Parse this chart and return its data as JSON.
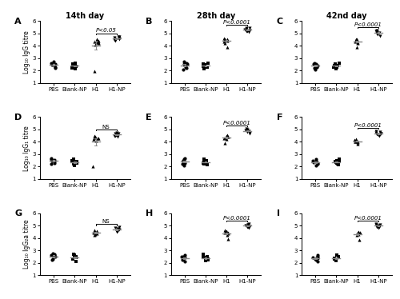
{
  "titles": [
    "14th day",
    "28th day",
    "42nd day"
  ],
  "panel_labels": [
    "A",
    "B",
    "C",
    "D",
    "E",
    "F",
    "G",
    "H",
    "I"
  ],
  "ylabels_top": [
    "IgG",
    "IgG₁",
    "IgG₂a"
  ],
  "ylabels_bottom": [
    "Log₁₀ IgG titre",
    "Log₁₀ IgG₁ titre",
    "Log₁₀ IgG₂a titre"
  ],
  "xlabels": [
    "PBS",
    "Blank-NP",
    "H1",
    "H1-NP"
  ],
  "significance": [
    [
      "P<0.05",
      "P<0.0001",
      "P<0.0001"
    ],
    [
      "NS",
      "P<0.0001",
      "P<0.0001"
    ],
    [
      "NS",
      "P<0.0001",
      "P<0.0001"
    ]
  ],
  "data": {
    "A": {
      "PBS": [
        2.5,
        2.6,
        2.4,
        2.2,
        2.7,
        2.55,
        2.45,
        2.3
      ],
      "Blank-NP": [
        2.4,
        2.3,
        2.5,
        2.2,
        2.35,
        2.6,
        2.45,
        2.15
      ],
      "H1": [
        4.2,
        4.3,
        4.4,
        4.35,
        4.1,
        4.5,
        4.25,
        1.95
      ],
      "H1-NP": [
        4.5,
        4.6,
        4.7,
        4.55,
        4.4,
        4.65,
        4.75,
        4.45
      ]
    },
    "B": {
      "PBS": [
        2.5,
        2.6,
        2.3,
        2.2,
        2.7,
        2.55,
        2.45,
        2.1
      ],
      "Blank-NP": [
        2.4,
        2.3,
        2.5,
        2.25,
        2.35,
        2.6,
        2.45,
        2.15
      ],
      "H1": [
        4.5,
        4.6,
        4.4,
        4.35,
        4.2,
        4.55,
        4.45,
        3.9
      ],
      "H1-NP": [
        5.3,
        5.4,
        5.2,
        5.35,
        5.1,
        5.45,
        5.25,
        5.15
      ]
    },
    "C": {
      "PBS": [
        2.4,
        2.5,
        2.3,
        2.2,
        2.6,
        2.5,
        2.45,
        2.1
      ],
      "Blank-NP": [
        2.4,
        2.3,
        2.5,
        2.25,
        2.35,
        2.6,
        2.4,
        2.15
      ],
      "H1": [
        4.4,
        4.5,
        4.3,
        4.35,
        4.2,
        4.45,
        4.55,
        3.9
      ],
      "H1-NP": [
        5.1,
        5.2,
        5.0,
        5.15,
        4.9,
        5.25,
        5.05,
        4.8
      ]
    },
    "D": {
      "PBS": [
        2.5,
        2.6,
        2.4,
        2.2,
        2.7,
        2.55,
        2.45,
        2.3
      ],
      "Blank-NP": [
        2.5,
        2.3,
        2.45,
        2.2,
        2.35,
        2.6,
        2.4,
        2.1
      ],
      "H1": [
        4.2,
        4.3,
        4.4,
        4.35,
        4.1,
        4.5,
        4.25,
        2.0
      ],
      "H1-NP": [
        4.5,
        4.6,
        4.7,
        4.55,
        4.4,
        4.65,
        4.75,
        4.5
      ]
    },
    "E": {
      "PBS": [
        2.5,
        2.6,
        2.3,
        2.2,
        2.7,
        2.5,
        2.45,
        2.1
      ],
      "Blank-NP": [
        2.4,
        2.3,
        2.5,
        2.25,
        2.35,
        2.6,
        2.45,
        2.15
      ],
      "H1": [
        4.3,
        4.4,
        4.5,
        4.35,
        4.2,
        4.55,
        4.4,
        3.9
      ],
      "H1-NP": [
        4.9,
        5.0,
        4.8,
        4.95,
        4.7,
        5.05,
        4.85,
        4.75
      ]
    },
    "F": {
      "PBS": [
        2.4,
        2.5,
        2.3,
        2.2,
        2.6,
        2.5,
        2.35,
        2.1
      ],
      "Blank-NP": [
        2.4,
        2.3,
        2.5,
        2.25,
        2.35,
        2.6,
        2.4,
        2.15
      ],
      "H1": [
        4.0,
        4.1,
        4.2,
        4.05,
        3.95,
        4.15,
        4.0,
        3.85
      ],
      "H1-NP": [
        4.6,
        4.7,
        4.8,
        4.65,
        4.5,
        4.75,
        4.85,
        4.55
      ]
    },
    "G": {
      "PBS": [
        2.6,
        2.7,
        2.5,
        2.3,
        2.75,
        2.6,
        2.5,
        2.2
      ],
      "Blank-NP": [
        2.5,
        2.4,
        2.6,
        2.3,
        2.45,
        2.65,
        2.5,
        2.1
      ],
      "H1": [
        4.5,
        4.6,
        4.4,
        4.35,
        4.2,
        4.55,
        4.45,
        4.3
      ],
      "H1-NP": [
        4.6,
        4.7,
        4.8,
        4.65,
        4.5,
        4.75,
        4.85,
        4.55
      ]
    },
    "H": {
      "PBS": [
        2.4,
        2.5,
        2.3,
        2.2,
        2.6,
        2.5,
        2.35,
        2.1
      ],
      "Blank-NP": [
        2.4,
        2.3,
        2.5,
        2.25,
        2.35,
        2.65,
        2.4,
        2.15
      ],
      "H1": [
        4.5,
        4.6,
        4.4,
        4.35,
        4.2,
        4.55,
        4.45,
        3.9
      ],
      "H1-NP": [
        5.0,
        5.1,
        4.9,
        5.05,
        4.8,
        5.15,
        4.95,
        4.85
      ]
    },
    "I": {
      "PBS": [
        2.4,
        2.5,
        2.3,
        2.2,
        2.6,
        2.45,
        2.35,
        2.1
      ],
      "Blank-NP": [
        2.4,
        2.3,
        2.5,
        2.25,
        2.35,
        2.6,
        2.4,
        2.15
      ],
      "H1": [
        4.3,
        4.4,
        4.5,
        4.35,
        4.2,
        4.45,
        4.4,
        3.85
      ],
      "H1-NP": [
        5.0,
        5.1,
        4.9,
        5.05,
        4.8,
        5.15,
        4.95,
        4.85
      ]
    }
  },
  "ylim": [
    1,
    6
  ],
  "yticks": [
    1,
    2,
    3,
    4,
    5,
    6
  ],
  "background_color": "#ffffff"
}
